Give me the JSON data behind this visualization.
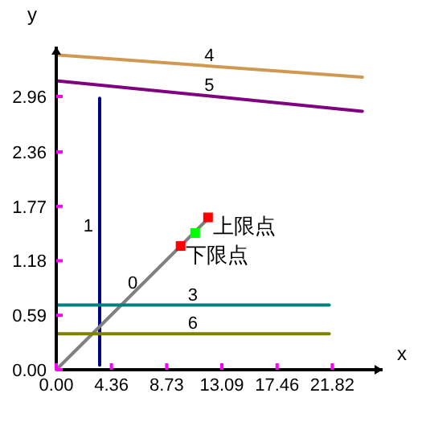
{
  "chart_data": {
    "type": "line",
    "xlabel": "x",
    "ylabel": "y",
    "xlim": [
      0,
      25.8
    ],
    "ylim": [
      0,
      3.5
    ],
    "xticks": [
      {
        "value": 0,
        "label": "0.00"
      },
      4.36,
      8.73,
      13.09,
      17.46,
      21.82
    ],
    "yticks": [
      {
        "value": 0,
        "label": "0.00"
      },
      0.59,
      1.18,
      1.77,
      2.36,
      2.96
    ],
    "series": [
      {
        "name": "4",
        "color": "#d09850",
        "x": [
          0,
          24.2
        ],
        "values": [
          3.41,
          3.17
        ]
      },
      {
        "name": "5",
        "color": "#800080",
        "x": [
          0,
          24.2
        ],
        "values": [
          3.13,
          2.8
        ]
      },
      {
        "name": "1",
        "color": "#000080",
        "x": [
          3.43,
          3.43
        ],
        "values": [
          0.05,
          2.94
        ]
      },
      {
        "name": "0",
        "color": "#808080",
        "x": [
          0,
          12.1
        ],
        "values": [
          0,
          1.65
        ]
      },
      {
        "name": "3",
        "color": "#008080",
        "x": [
          0,
          21.58
        ],
        "values": [
          0.7,
          0.7
        ]
      },
      {
        "name": "6",
        "color": "#808000",
        "x": [
          0,
          21.58
        ],
        "values": [
          0.39,
          0.39
        ]
      },
      {
        "type": "scatter",
        "marker": "square",
        "x": [
          9.83,
          10.98,
          12.0
        ],
        "values": [
          1.34,
          1.48,
          1.65
        ],
        "colors": [
          "#ff0000",
          "#00ff00",
          "#ff0000"
        ]
      }
    ],
    "annotations": [
      {
        "text": "上限点",
        "x": 12.0,
        "y": 1.65
      },
      {
        "text": "下限点",
        "x": 9.83,
        "y": 1.34
      }
    ]
  }
}
